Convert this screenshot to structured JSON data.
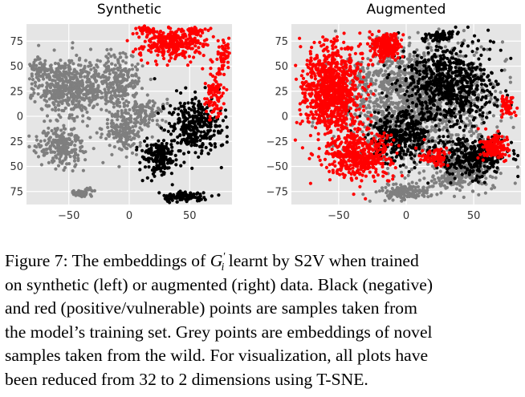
{
  "chart_data": [
    {
      "type": "scatter",
      "title": "Synthetic",
      "x_ticks": [
        "−50",
        "0",
        "50"
      ],
      "y_ticks": [
        "75",
        "50",
        "25",
        "0",
        "25",
        "50",
        "75"
      ],
      "xlim": [
        -85,
        85
      ],
      "ylim": [
        -88,
        92
      ],
      "grid": true,
      "colors": {
        "grey": "#7f7f7f",
        "black": "#000000",
        "red": "#ff0000",
        "background": "#e5e5e5"
      },
      "series": [
        {
          "color": "#7f7f7f",
          "clusters": [
            {
              "cx": -50,
              "cy": 30,
              "rx": 28,
              "ry": 28,
              "n": 520
            },
            {
              "cx": -10,
              "cy": 35,
              "rx": 18,
              "ry": 28,
              "n": 260
            },
            {
              "cx": -55,
              "cy": -30,
              "rx": 22,
              "ry": 20,
              "n": 230
            },
            {
              "cx": -5,
              "cy": -15,
              "rx": 16,
              "ry": 22,
              "n": 180
            },
            {
              "cx": 15,
              "cy": 2,
              "rx": 12,
              "ry": 14,
              "n": 90
            },
            {
              "cx": -40,
              "cy": -76,
              "rx": 10,
              "ry": 5,
              "n": 40
            },
            {
              "cx": -75,
              "cy": 45,
              "rx": 8,
              "ry": 12,
              "n": 60
            }
          ]
        },
        {
          "color": "#000000",
          "clusters": [
            {
              "cx": 55,
              "cy": -10,
              "rx": 22,
              "ry": 28,
              "n": 330
            },
            {
              "cx": 25,
              "cy": -42,
              "rx": 14,
              "ry": 18,
              "n": 180
            },
            {
              "cx": 45,
              "cy": -80,
              "rx": 18,
              "ry": 5,
              "n": 120
            }
          ]
        },
        {
          "color": "#ff0000",
          "clusters": [
            {
              "cx": 35,
              "cy": 72,
              "rx": 28,
              "ry": 16,
              "n": 300
            },
            {
              "cx": 15,
              "cy": 87,
              "rx": 10,
              "ry": 4,
              "n": 40
            },
            {
              "cx": 70,
              "cy": 20,
              "rx": 8,
              "ry": 24,
              "n": 90
            },
            {
              "cx": 78,
              "cy": 60,
              "rx": 5,
              "ry": 16,
              "n": 50
            },
            {
              "cx": 55,
              "cy": 85,
              "rx": 10,
              "ry": 4,
              "n": 40
            }
          ]
        }
      ]
    },
    {
      "type": "scatter",
      "title": "Augmented",
      "x_ticks": [
        "−50",
        "0",
        "50"
      ],
      "y_ticks": [
        "75",
        "50",
        "25",
        "0",
        "−25",
        "−50",
        "−75"
      ],
      "xlim": [
        -85,
        85
      ],
      "ylim": [
        -88,
        92
      ],
      "grid": true,
      "colors": {
        "grey": "#7f7f7f",
        "black": "#000000",
        "red": "#ff0000",
        "background": "#e5e5e5"
      },
      "series": [
        {
          "color": "#7f7f7f",
          "clusters": [
            {
              "cx": 5,
              "cy": 15,
              "rx": 55,
              "ry": 55,
              "n": 1400
            },
            {
              "cx": 40,
              "cy": -55,
              "rx": 25,
              "ry": 20,
              "n": 300
            },
            {
              "cx": 0,
              "cy": -75,
              "rx": 20,
              "ry": 8,
              "n": 150
            }
          ]
        },
        {
          "color": "#000000",
          "clusters": [
            {
              "cx": 30,
              "cy": 30,
              "rx": 35,
              "ry": 40,
              "n": 700
            },
            {
              "cx": -5,
              "cy": -20,
              "rx": 25,
              "ry": 25,
              "n": 350
            },
            {
              "cx": 50,
              "cy": -40,
              "rx": 25,
              "ry": 18,
              "n": 300
            },
            {
              "cx": 25,
              "cy": 80,
              "rx": 12,
              "ry": 5,
              "n": 60
            }
          ]
        },
        {
          "color": "#ff0000",
          "clusters": [
            {
              "cx": -55,
              "cy": 25,
              "rx": 22,
              "ry": 45,
              "n": 900
            },
            {
              "cx": -35,
              "cy": -40,
              "rx": 25,
              "ry": 25,
              "n": 450
            },
            {
              "cx": -15,
              "cy": 70,
              "rx": 12,
              "ry": 15,
              "n": 200
            },
            {
              "cx": 65,
              "cy": -30,
              "rx": 12,
              "ry": 12,
              "n": 150
            },
            {
              "cx": 20,
              "cy": -40,
              "rx": 10,
              "ry": 10,
              "n": 80
            },
            {
              "cx": 75,
              "cy": 10,
              "rx": 6,
              "ry": 10,
              "n": 60
            }
          ]
        }
      ]
    }
  ],
  "caption": {
    "line1_before": "Figure 7: The embeddings of ",
    "symbol_base": "G",
    "symbol_sup": "′",
    "symbol_sub": "i",
    "line1_after": " learnt by S2V when trained",
    "line2": "on synthetic (left) or augmented (right) data. Black (negative)",
    "line3": "and red (positive/vulnerable) points are samples taken from",
    "line4": "the model’s training set. Grey points are embeddings of novel",
    "line5": "samples taken from the wild. For visualization, all plots have",
    "line6": "been reduced from 32 to 2 dimensions using T-SNE."
  }
}
